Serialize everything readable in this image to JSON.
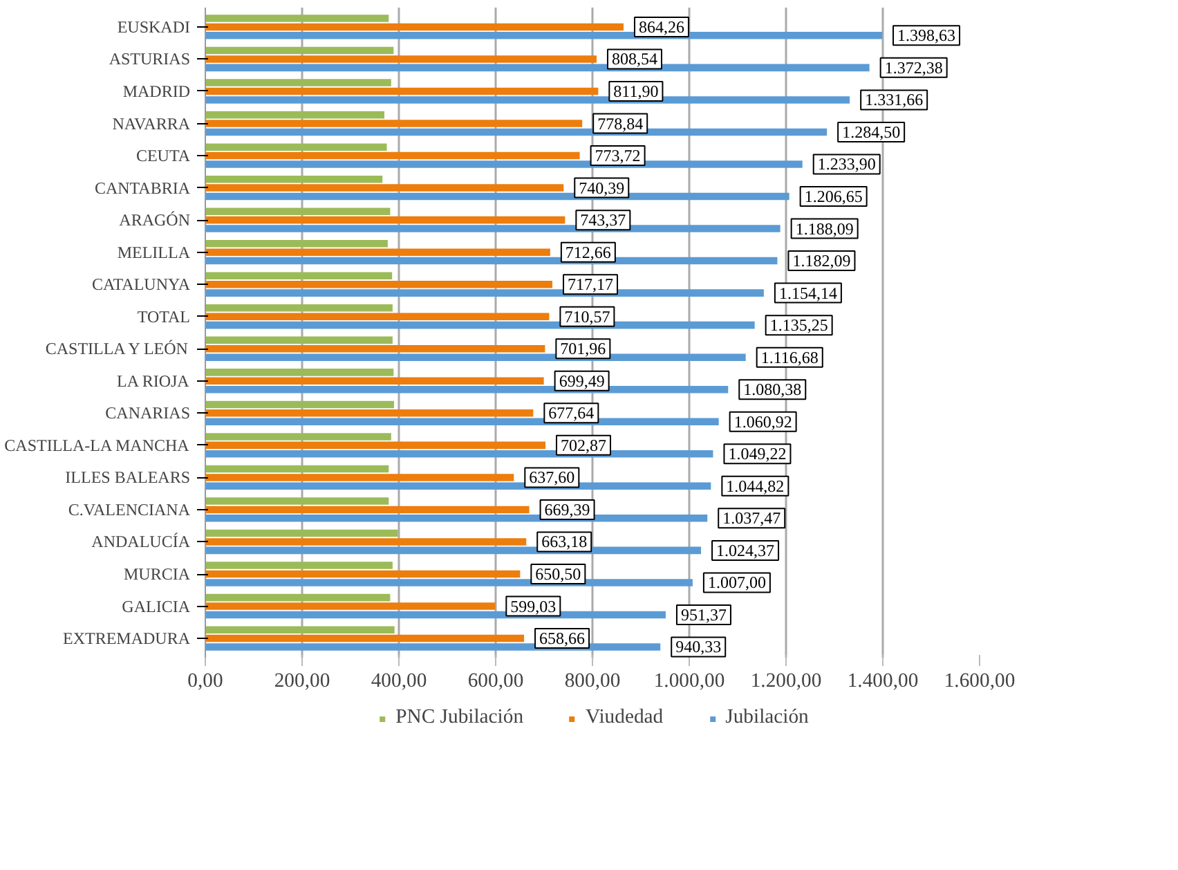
{
  "chart_data": {
    "type": "bar",
    "orientation": "horizontal",
    "categories": [
      "EUSKADI",
      "ASTURIAS",
      "MADRID",
      "NAVARRA",
      "CEUTA",
      "CANTABRIA",
      "ARAGÓN",
      "MELILLA",
      "CATALUNYA",
      "TOTAL",
      "CASTILLA Y LEÓN",
      "LA RIOJA",
      "CANARIAS",
      "CASTILLA-LA MANCHA",
      "ILLES BALEARS",
      "C.VALENCIANA",
      "ANDALUCÍA",
      "MURCIA",
      "GALICIA",
      "EXTREMADURA"
    ],
    "series": [
      {
        "name": "PNC Jubilación",
        "color": "#9bbb59",
        "values": [
          379,
          389,
          384,
          370,
          375,
          366,
          382,
          377,
          386,
          387,
          387,
          389,
          390,
          384,
          379,
          379,
          398,
          387,
          382,
          391
        ]
      },
      {
        "name": "Viudedad",
        "color": "#ed7d0d",
        "values": [
          864.26,
          808.54,
          811.9,
          778.84,
          773.72,
          740.39,
          743.37,
          712.66,
          717.17,
          710.57,
          701.96,
          699.49,
          677.64,
          702.87,
          637.6,
          669.39,
          663.18,
          650.5,
          599.03,
          658.66
        ],
        "value_labels": [
          "864,26",
          "808,54",
          "811,90",
          "778,84",
          "773,72",
          "740,39",
          "743,37",
          "712,66",
          "717,17",
          "710,57",
          "701,96",
          "699,49",
          "677,64",
          "702,87",
          "637,60",
          "669,39",
          "663,18",
          "650,50",
          "599,03",
          "658,66"
        ]
      },
      {
        "name": "Jubilación",
        "color": "#5b9bd5",
        "values": [
          1398.63,
          1372.38,
          1331.66,
          1284.5,
          1233.9,
          1206.65,
          1188.09,
          1182.09,
          1154.14,
          1135.25,
          1116.68,
          1080.38,
          1060.92,
          1049.22,
          1044.82,
          1037.47,
          1024.37,
          1007.0,
          951.37,
          940.33
        ],
        "value_labels": [
          "1.398,63",
          "1.372,38",
          "1.331,66",
          "1.284,50",
          "1.233,90",
          "1.206,65",
          "1.188,09",
          "1.182,09",
          "1.154,14",
          "1.135,25",
          "1.116,68",
          "1.080,38",
          "1.060,92",
          "1.049,22",
          "1.044,82",
          "1.037,47",
          "1.024,37",
          "1.007,00",
          "951,37",
          "940,33"
        ]
      }
    ],
    "xlim": [
      0,
      1600
    ],
    "xticks": [
      {
        "value": 0,
        "label": "0,00"
      },
      {
        "value": 200,
        "label": "200,00"
      },
      {
        "value": 400,
        "label": "400,00"
      },
      {
        "value": 600,
        "label": "600,00"
      },
      {
        "value": 800,
        "label": "800,00"
      },
      {
        "value": 1000,
        "label": "1.000,00"
      },
      {
        "value": 1200,
        "label": "1.200,00"
      },
      {
        "value": 1400,
        "label": "1.400,00"
      },
      {
        "value": 1600,
        "label": "1.600,00"
      }
    ],
    "grid": "x",
    "legend": "bottom"
  }
}
